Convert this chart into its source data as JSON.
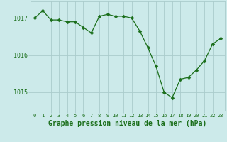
{
  "x": [
    0,
    1,
    2,
    3,
    4,
    5,
    6,
    7,
    8,
    9,
    10,
    11,
    12,
    13,
    14,
    15,
    16,
    17,
    18,
    19,
    20,
    21,
    22,
    23
  ],
  "y": [
    1017.0,
    1017.2,
    1016.95,
    1016.95,
    1016.9,
    1016.9,
    1016.75,
    1016.6,
    1017.05,
    1017.1,
    1017.05,
    1017.05,
    1017.0,
    1016.65,
    1016.2,
    1015.7,
    1015.0,
    1014.85,
    1015.35,
    1015.4,
    1015.6,
    1015.85,
    1016.3,
    1016.45
  ],
  "line_color": "#1a6e1a",
  "marker": "D",
  "marker_size": 2.5,
  "bg_color": "#cceaea",
  "grid_color": "#aacccc",
  "ylabel_ticks": [
    1015,
    1016,
    1017
  ],
  "xlabel_label": "Graphe pression niveau de la mer (hPa)",
  "xlim": [
    -0.5,
    23.5
  ],
  "ylim": [
    1014.5,
    1017.45
  ],
  "tick_label_color": "#1a6e1a",
  "xlabel_color": "#1a6e1a",
  "xtick_fontsize": 5.0,
  "ytick_fontsize": 6.0,
  "xlabel_fontsize": 7.0
}
